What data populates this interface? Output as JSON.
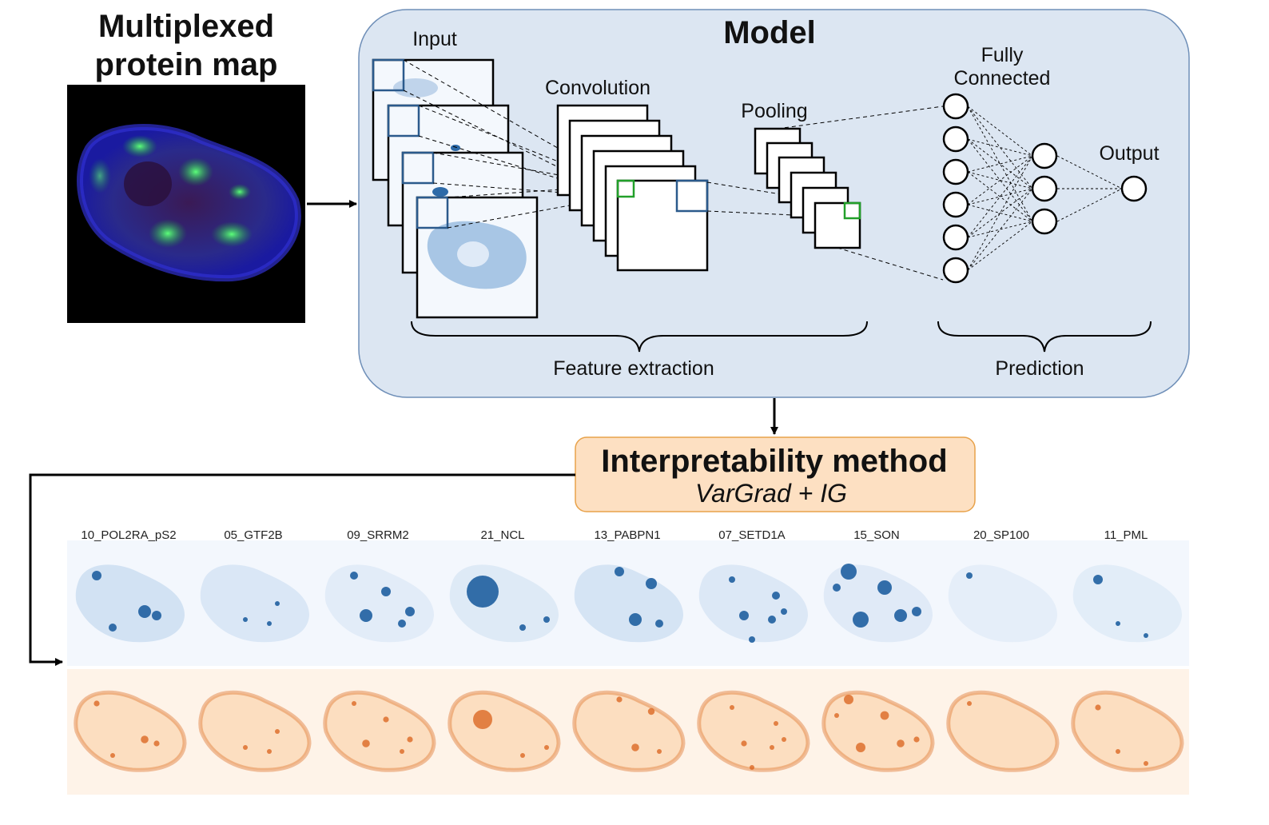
{
  "left_panel": {
    "title_line1": "Multiplexed",
    "title_line2": "protein map"
  },
  "model": {
    "title": "Model",
    "input_label": "Input",
    "convolution_label": "Convolution",
    "pooling_label": "Pooling",
    "fc_label_line1": "Fully",
    "fc_label_line2": "Connected",
    "output_label": "Output",
    "feature_extraction_label": "Feature extraction",
    "prediction_label": "Prediction"
  },
  "interpretability": {
    "title": "Interpretability method",
    "subtitle": "VarGrad + IG"
  },
  "proteins": [
    "10_POL2RA_pS2",
    "05_GTF2B",
    "09_SRRM2",
    "21_NCL",
    "13_PABPN1",
    "07_SETD1A",
    "15_SON",
    "20_SP100",
    "11_PML"
  ],
  "colors": {
    "model_box_fill": "#dce6f2",
    "model_box_stroke": "#6f8fb8",
    "interp_fill": "#fde0c2",
    "interp_stroke": "#e8a24a",
    "blue_strip": "#f3f7fd",
    "orange_strip": "#fef3e8",
    "blue_spot": "#1f5fa0",
    "orange_spot": "#d9601a",
    "highlight_blue": "#2b5a8c",
    "highlight_green": "#22a02a"
  }
}
